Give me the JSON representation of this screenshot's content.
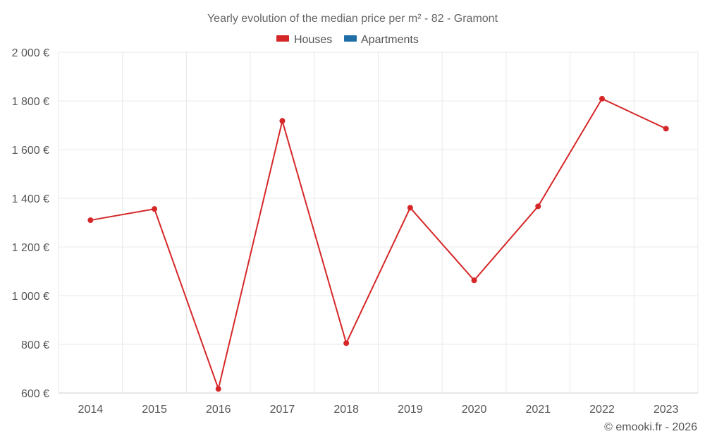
{
  "colors": {
    "houses": "#d62728",
    "apartments": "#1f6fa6"
  },
  "chart_data": {
    "type": "line",
    "title": "Yearly evolution of the median price per m² - 82 - Gramont",
    "xlabel": "",
    "ylabel": "",
    "categories": [
      "2014",
      "2015",
      "2016",
      "2017",
      "2018",
      "2019",
      "2020",
      "2021",
      "2022",
      "2023"
    ],
    "ylim": [
      600,
      2000
    ],
    "yticks": [
      600,
      800,
      1000,
      1200,
      1400,
      1600,
      1800,
      2000
    ],
    "ytick_labels": [
      "600 €",
      "800 €",
      "1 000 €",
      "1 200 €",
      "1 400 €",
      "1 600 €",
      "1 800 €",
      "2 000 €"
    ],
    "legend": {
      "position": "top-center",
      "entries": [
        {
          "name": "Houses",
          "color": "#d62728"
        },
        {
          "name": "Apartments",
          "color": "#1f6fa6"
        }
      ]
    },
    "grid": true,
    "series": [
      {
        "name": "Houses",
        "color": "#d62728",
        "values": [
          1310,
          1356,
          617,
          1718,
          805,
          1361,
          1063,
          1367,
          1809,
          1686
        ]
      }
    ]
  },
  "credit": "© emooki.fr - 2026"
}
